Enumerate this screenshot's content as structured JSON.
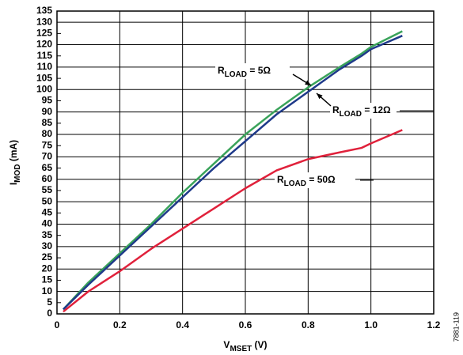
{
  "chart_data": {
    "type": "line",
    "x_label": {
      "main": "V",
      "sub": "MSET",
      "rest": " (V)"
    },
    "y_label": {
      "main": "I",
      "sub": "MOD",
      "rest": " (mA)"
    },
    "figure_id": "7881-119",
    "x": [
      0.02,
      0.1,
      0.2,
      0.3,
      0.4,
      0.5,
      0.6,
      0.7,
      0.8,
      0.9,
      0.97,
      1.0,
      1.1
    ],
    "series": [
      {
        "color": "#3aa35a",
        "values": [
          2,
          14,
          27,
          40,
          54,
          67,
          80,
          91,
          101,
          110,
          116,
          119,
          126
        ]
      },
      {
        "color": "#1f3a8a",
        "values": [
          2,
          13,
          26,
          39,
          52,
          65,
          77,
          89,
          99,
          109,
          115,
          118,
          124
        ]
      },
      {
        "color": "#e0213b",
        "values": [
          1,
          10,
          19,
          29,
          38,
          47,
          56,
          64,
          69,
          72,
          74,
          76,
          82
        ]
      }
    ],
    "annotations": [
      {
        "main": "R",
        "sub": "LOAD",
        "rest": " = 5Ω"
      },
      {
        "main": "R",
        "sub": "LOAD",
        "rest": " = 12Ω"
      },
      {
        "main": "R",
        "sub": "LOAD",
        "rest": " = 50Ω"
      }
    ],
    "xlim": [
      0,
      1.2
    ],
    "xticks": [
      0,
      0.2,
      0.4,
      0.6,
      0.8,
      {
        "value": 1,
        "label": "1.0"
      },
      1.2
    ],
    "ylim": [
      0,
      135
    ],
    "yticks": [
      0,
      5,
      10,
      15,
      20,
      25,
      30,
      35,
      40,
      45,
      50,
      55,
      60,
      65,
      70,
      75,
      80,
      85,
      90,
      95,
      100,
      105,
      110,
      115,
      120,
      125,
      130,
      135
    ],
    "grid": true
  }
}
